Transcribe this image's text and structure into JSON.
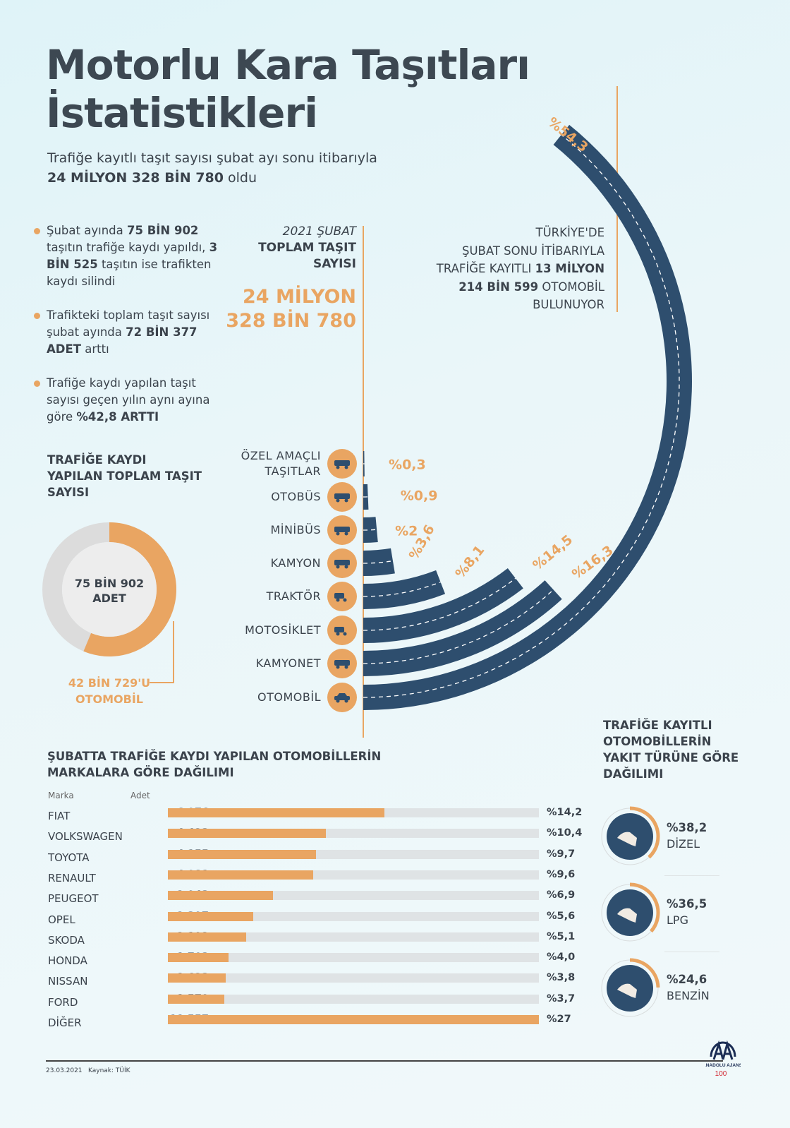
{
  "title": [
    "Motorlu Kara Taşıtları",
    "İstatistikleri"
  ],
  "subtitle": {
    "line1": "Trafiğe kayıtlı taşıt sayısı şubat ayı sonu itibarıyla",
    "line2_bold": "24 MİLYON 328 BİN 780",
    "line2_rest": " oldu"
  },
  "bullets": [
    {
      "parts": [
        [
          "Şubat ayında ",
          false
        ],
        [
          "75 BİN 902",
          true
        ],
        [
          " taşıtın trafiğe kaydı yapıldı, ",
          false
        ],
        [
          "3 BİN 525",
          true
        ],
        [
          " taşıtın ise trafikten kaydı silindi",
          false
        ]
      ]
    },
    {
      "parts": [
        [
          "Trafikteki toplam taşıt sayısı şubat ayında ",
          false
        ],
        [
          "72 BİN 377 ADET",
          true
        ],
        [
          " arttı",
          false
        ]
      ]
    },
    {
      "parts": [
        [
          "Trafiğe kaydı yapılan taşıt sayısı geçen yılın aynı ayına göre ",
          false
        ],
        [
          "%42,8 ARTTI",
          true
        ]
      ]
    }
  ],
  "total": {
    "period": "2021 ŞUBAT",
    "label1": "TOPLAM TAŞIT",
    "label2": "SAYISI",
    "value1": "24 MİLYON",
    "value2": "328 BİN 780"
  },
  "car_note": {
    "l1": "TÜRKİYE'DE",
    "l2": "ŞUBAT SONU İTİBARIYLA",
    "l3a": "TRAFİĞE KAYITLI ",
    "l3b": "13 MİLYON",
    "l4a": "214 BİN 599",
    "l4b": " OTOMOBİL",
    "l5": "BULUNUYOR"
  },
  "donut": {
    "heading": [
      "TRAFİĞE KAYDI",
      "YAPILAN TOPLAM TAŞIT",
      "SAYISI"
    ],
    "center": [
      "75 BİN 902",
      "ADET"
    ],
    "callout": [
      "42 BİN 729'U",
      "OTOMOBİL"
    ],
    "total": 75902,
    "part": 42729,
    "colors": {
      "part": "#e9a562",
      "rest": "#dcdcdc",
      "inner": "#ededed"
    }
  },
  "chart_data": [
    {
      "type": "radial-bar",
      "unit": "%",
      "colors": {
        "bar": "#2e4e6e",
        "label": "#e9a562",
        "icon_bg": "#e9a562"
      },
      "categories": [
        {
          "label": [
            "ÖZEL AMAÇLI",
            "TAŞITLAR"
          ],
          "value": 0.3,
          "value_label": "%0,3",
          "icon": "concrete-mixer-icon"
        },
        {
          "label": [
            "OTOBÜS"
          ],
          "value": 0.9,
          "value_label": "%0,9",
          "icon": "bus-icon"
        },
        {
          "label": [
            "MİNİBÜS"
          ],
          "value": 2,
          "value_label": "%2",
          "icon": "minibus-icon"
        },
        {
          "label": [
            "KAMYON"
          ],
          "value": 3.6,
          "value_label": "%3,6",
          "icon": "truck-icon"
        },
        {
          "label": [
            "TRAKTÖR"
          ],
          "value": 8.1,
          "value_label": "%8,1",
          "icon": "tractor-icon"
        },
        {
          "label": [
            "MOTOSİKLET"
          ],
          "value": 14.5,
          "value_label": "%14,5",
          "icon": "scooter-icon"
        },
        {
          "label": [
            "KAMYONET"
          ],
          "value": 16.3,
          "value_label": "%16,3",
          "icon": "van-icon"
        },
        {
          "label": [
            "OTOMOBİL"
          ],
          "value": 54.3,
          "value_label": "%54,3",
          "icon": "car-icon"
        }
      ]
    },
    {
      "type": "bar",
      "orientation": "horizontal",
      "title": [
        "ŞUBATTA TRAFİĞE KAYDI YAPILAN OTOMOBİLLERİN",
        "MARKALARA GÖRE DAĞILIMI"
      ],
      "col_headers": {
        "name": "Marka",
        "value": "Adet"
      },
      "xlim": [
        0,
        10400
      ],
      "colors": {
        "bar": "#e9a562",
        "track": "#dfe3e5"
      },
      "categories": [
        "FIAT",
        "VOLKSWAGEN",
        "TOYOTA",
        "RENAULT",
        "PEUGEOT",
        "OPEL",
        "SKODA",
        "HONDA",
        "NISSAN",
        "FORD",
        "DİĞER"
      ],
      "values": [
        6076,
        4423,
        4155,
        4081,
        2943,
        2397,
        2192,
        1703,
        1623,
        1579,
        11557
      ],
      "value_labels": [
        "6 076",
        "4 423",
        "4 155",
        "4 081",
        "2 943",
        "2 397",
        "2 192",
        "1 703",
        "1 623",
        "1 579",
        "11 557"
      ],
      "pct_labels": [
        "%14,2",
        "%10,4",
        "%9,7",
        "%9,6",
        "%6,9",
        "%5,6",
        "%5,1",
        "%4,0",
        "%3,8",
        "%3,7",
        "%27"
      ]
    },
    {
      "type": "pie",
      "title": [
        "TRAFİĞE KAYITLI",
        "OTOMOBİLLERİN",
        "YAKIT TÜRÜNE GÖRE",
        "DAĞILIMI"
      ],
      "colors": {
        "arc": "#e9a562",
        "disc": "#2e4e6e"
      },
      "categories": [
        "DİZEL",
        "LPG",
        "BENZİN"
      ],
      "values": [
        38.2,
        36.5,
        24.6
      ],
      "value_labels": [
        "%38,2",
        "%36,5",
        "%24,6"
      ],
      "icons": [
        "fuel-nozzle-icon",
        "lpg-nozzle-icon",
        "fuel-nozzle-icon"
      ]
    }
  ],
  "footer": {
    "date": "23.03.2021",
    "source": "Kaynak: TÜİK",
    "logo": "ANADOLU AJANSI",
    "logo_sub": "100 yıl 1920-2020"
  }
}
